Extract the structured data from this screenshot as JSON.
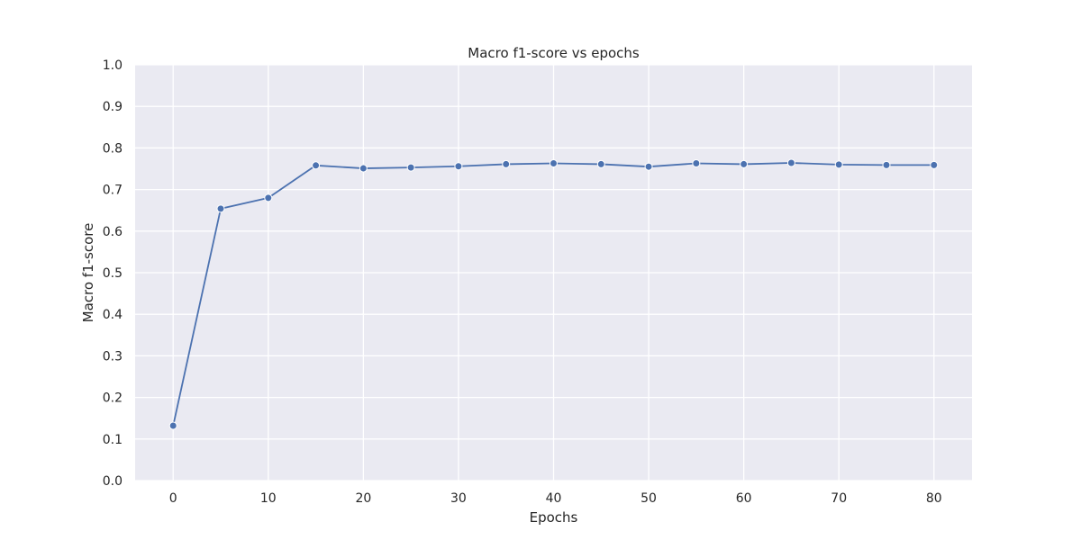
{
  "chart_data": {
    "type": "line",
    "title": "Macro f1-score vs epochs",
    "xlabel": "Epochs",
    "ylabel": "Macro f1-score",
    "xlim": [
      -4,
      84
    ],
    "ylim": [
      0.0,
      1.0
    ],
    "x_ticks": [
      0,
      10,
      20,
      30,
      40,
      50,
      60,
      70,
      80
    ],
    "y_ticks": [
      "0.0",
      "0.1",
      "0.2",
      "0.3",
      "0.4",
      "0.5",
      "0.6",
      "0.7",
      "0.8",
      "0.9",
      "1.0"
    ],
    "grid": true,
    "series": [
      {
        "color": "#4c72b0",
        "x": [
          0,
          5,
          10,
          15,
          20,
          25,
          30,
          35,
          40,
          45,
          50,
          55,
          60,
          65,
          70,
          75,
          80
        ],
        "y": [
          0.132,
          0.654,
          0.68,
          0.758,
          0.751,
          0.753,
          0.756,
          0.761,
          0.763,
          0.761,
          0.755,
          0.763,
          0.761,
          0.764,
          0.76,
          0.759,
          0.759
        ]
      }
    ]
  }
}
